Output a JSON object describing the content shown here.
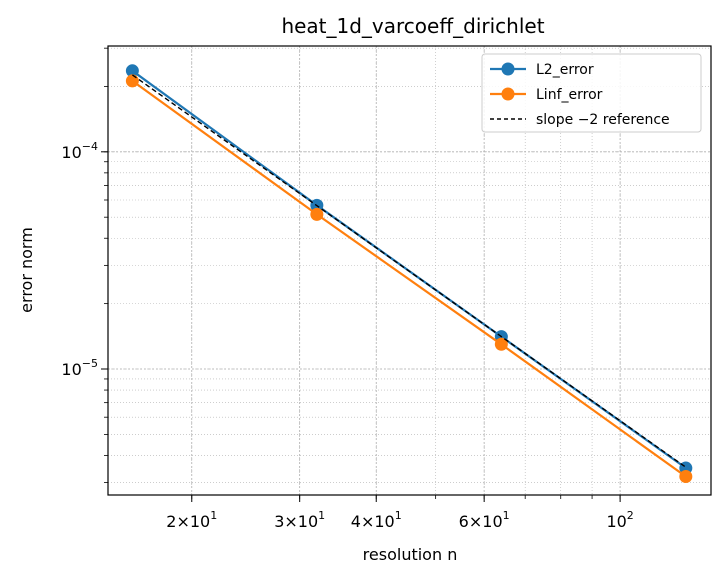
{
  "chart_data": {
    "type": "line",
    "title": "heat_1d_varcoeff_dirichlet",
    "xlabel": "resolution n",
    "ylabel": "error norm",
    "xscale": "log",
    "yscale": "log",
    "grid": true,
    "legend_position": "top-right",
    "x": [
      16,
      32,
      64,
      128
    ],
    "series": [
      {
        "name": "L2_error",
        "values": [
          0.000236,
          5.67e-05,
          1.41e-05,
          3.5e-06
        ],
        "color": "#1f77b4",
        "marker": "circle",
        "style": "solid"
      },
      {
        "name": "Linf_error",
        "values": [
          0.000212,
          5.15e-05,
          1.3e-05,
          3.2e-06
        ],
        "color": "#ff7f0e",
        "marker": "circle",
        "style": "solid"
      },
      {
        "name": "slope −2 reference",
        "values": [
          0.000226,
          5.65e-05,
          1.41e-05,
          3.53e-06
        ],
        "color": "#000000",
        "marker": "none",
        "style": "dashed"
      }
    ],
    "x_ticks": [
      {
        "value": 20,
        "base": "2×10",
        "exp": "1"
      },
      {
        "value": 30,
        "base": "3×10",
        "exp": "1"
      },
      {
        "value": 40,
        "base": "4×10",
        "exp": "1"
      },
      {
        "value": 60,
        "base": "6×10",
        "exp": "1"
      },
      {
        "value": 100,
        "base": "10",
        "exp": "2"
      }
    ],
    "y_ticks": [
      {
        "value": 0.0001,
        "base": "10",
        "exp": "−4"
      },
      {
        "value": 1e-05,
        "base": "10",
        "exp": "−5"
      }
    ]
  }
}
